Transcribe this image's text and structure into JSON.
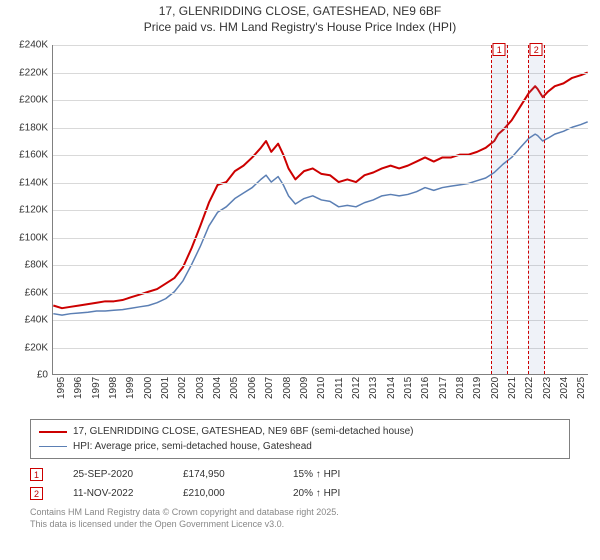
{
  "title": {
    "line1": "17, GLENRIDDING CLOSE, GATESHEAD, NE9 6BF",
    "line2": "Price paid vs. HM Land Registry's House Price Index (HPI)"
  },
  "chart": {
    "type": "line",
    "background_color": "#ffffff",
    "grid_color": "#d9d9d9",
    "axis_color": "#808080",
    "xlim": [
      1995,
      2025.9
    ],
    "ylim": [
      0,
      240000
    ],
    "ytick_step": 20000,
    "ytick_prefix": "£",
    "ytick_suffix": "K",
    "xticks": [
      1995,
      1996,
      1997,
      1998,
      1999,
      2000,
      2001,
      2002,
      2003,
      2004,
      2005,
      2006,
      2007,
      2008,
      2009,
      2010,
      2011,
      2012,
      2013,
      2014,
      2015,
      2016,
      2017,
      2018,
      2019,
      2020,
      2021,
      2022,
      2023,
      2024,
      2025
    ],
    "series": [
      {
        "name": "17, GLENRIDDING CLOSE, GATESHEAD, NE9 6BF (semi-detached house)",
        "color": "#cc0000",
        "line_width": 2,
        "points": [
          [
            1995.0,
            50000
          ],
          [
            1995.5,
            48000
          ],
          [
            1996.0,
            49000
          ],
          [
            1996.5,
            50000
          ],
          [
            1997.0,
            51000
          ],
          [
            1997.5,
            52000
          ],
          [
            1998.0,
            53000
          ],
          [
            1998.5,
            53000
          ],
          [
            1999.0,
            54000
          ],
          [
            1999.5,
            56000
          ],
          [
            2000.0,
            58000
          ],
          [
            2000.5,
            60000
          ],
          [
            2001.0,
            62000
          ],
          [
            2001.5,
            66000
          ],
          [
            2002.0,
            70000
          ],
          [
            2002.5,
            78000
          ],
          [
            2003.0,
            92000
          ],
          [
            2003.5,
            108000
          ],
          [
            2004.0,
            125000
          ],
          [
            2004.5,
            138000
          ],
          [
            2005.0,
            140000
          ],
          [
            2005.5,
            148000
          ],
          [
            2006.0,
            152000
          ],
          [
            2006.5,
            158000
          ],
          [
            2007.0,
            165000
          ],
          [
            2007.3,
            170000
          ],
          [
            2007.6,
            162000
          ],
          [
            2008.0,
            168000
          ],
          [
            2008.3,
            160000
          ],
          [
            2008.6,
            150000
          ],
          [
            2009.0,
            142000
          ],
          [
            2009.5,
            148000
          ],
          [
            2010.0,
            150000
          ],
          [
            2010.5,
            146000
          ],
          [
            2011.0,
            145000
          ],
          [
            2011.5,
            140000
          ],
          [
            2012.0,
            142000
          ],
          [
            2012.5,
            140000
          ],
          [
            2013.0,
            145000
          ],
          [
            2013.5,
            147000
          ],
          [
            2014.0,
            150000
          ],
          [
            2014.5,
            152000
          ],
          [
            2015.0,
            150000
          ],
          [
            2015.5,
            152000
          ],
          [
            2016.0,
            155000
          ],
          [
            2016.5,
            158000
          ],
          [
            2017.0,
            155000
          ],
          [
            2017.5,
            158000
          ],
          [
            2018.0,
            158000
          ],
          [
            2018.5,
            160000
          ],
          [
            2019.0,
            160000
          ],
          [
            2019.5,
            162000
          ],
          [
            2020.0,
            165000
          ],
          [
            2020.5,
            170000
          ],
          [
            2020.73,
            174950
          ],
          [
            2021.0,
            178000
          ],
          [
            2021.5,
            185000
          ],
          [
            2022.0,
            195000
          ],
          [
            2022.5,
            205000
          ],
          [
            2022.86,
            210000
          ],
          [
            2023.0,
            208000
          ],
          [
            2023.3,
            202000
          ],
          [
            2023.6,
            206000
          ],
          [
            2024.0,
            210000
          ],
          [
            2024.5,
            212000
          ],
          [
            2025.0,
            216000
          ],
          [
            2025.5,
            218000
          ],
          [
            2025.9,
            220000
          ]
        ]
      },
      {
        "name": "HPI: Average price, semi-detached house, Gateshead",
        "color": "#5b7fb4",
        "line_width": 1.5,
        "points": [
          [
            1995.0,
            44000
          ],
          [
            1995.5,
            43000
          ],
          [
            1996.0,
            44000
          ],
          [
            1996.5,
            44500
          ],
          [
            1997.0,
            45000
          ],
          [
            1997.5,
            46000
          ],
          [
            1998.0,
            46000
          ],
          [
            1998.5,
            46500
          ],
          [
            1999.0,
            47000
          ],
          [
            1999.5,
            48000
          ],
          [
            2000.0,
            49000
          ],
          [
            2000.5,
            50000
          ],
          [
            2001.0,
            52000
          ],
          [
            2001.5,
            55000
          ],
          [
            2002.0,
            60000
          ],
          [
            2002.5,
            68000
          ],
          [
            2003.0,
            80000
          ],
          [
            2003.5,
            93000
          ],
          [
            2004.0,
            108000
          ],
          [
            2004.5,
            118000
          ],
          [
            2005.0,
            122000
          ],
          [
            2005.5,
            128000
          ],
          [
            2006.0,
            132000
          ],
          [
            2006.5,
            136000
          ],
          [
            2007.0,
            142000
          ],
          [
            2007.3,
            145000
          ],
          [
            2007.6,
            140000
          ],
          [
            2008.0,
            144000
          ],
          [
            2008.3,
            138000
          ],
          [
            2008.6,
            130000
          ],
          [
            2009.0,
            124000
          ],
          [
            2009.5,
            128000
          ],
          [
            2010.0,
            130000
          ],
          [
            2010.5,
            127000
          ],
          [
            2011.0,
            126000
          ],
          [
            2011.5,
            122000
          ],
          [
            2012.0,
            123000
          ],
          [
            2012.5,
            122000
          ],
          [
            2013.0,
            125000
          ],
          [
            2013.5,
            127000
          ],
          [
            2014.0,
            130000
          ],
          [
            2014.5,
            131000
          ],
          [
            2015.0,
            130000
          ],
          [
            2015.5,
            131000
          ],
          [
            2016.0,
            133000
          ],
          [
            2016.5,
            136000
          ],
          [
            2017.0,
            134000
          ],
          [
            2017.5,
            136000
          ],
          [
            2018.0,
            137000
          ],
          [
            2018.5,
            138000
          ],
          [
            2019.0,
            139000
          ],
          [
            2019.5,
            141000
          ],
          [
            2020.0,
            143000
          ],
          [
            2020.5,
            147000
          ],
          [
            2021.0,
            153000
          ],
          [
            2021.5,
            158000
          ],
          [
            2022.0,
            165000
          ],
          [
            2022.5,
            172000
          ],
          [
            2022.86,
            175000
          ],
          [
            2023.0,
            174000
          ],
          [
            2023.3,
            170000
          ],
          [
            2023.6,
            172000
          ],
          [
            2024.0,
            175000
          ],
          [
            2024.5,
            177000
          ],
          [
            2025.0,
            180000
          ],
          [
            2025.5,
            182000
          ],
          [
            2025.9,
            184000
          ]
        ]
      }
    ],
    "event_markers": [
      {
        "id": "1",
        "x": 2020.73,
        "band_width_years": 1.0,
        "border_color": "#cc0000"
      },
      {
        "id": "2",
        "x": 2022.86,
        "band_width_years": 1.0,
        "border_color": "#cc0000"
      }
    ]
  },
  "legend": {
    "border_color": "#808080"
  },
  "events": [
    {
      "id": "1",
      "date": "25-SEP-2020",
      "price": "£174,950",
      "delta": "15% ↑ HPI",
      "border_color": "#cc0000"
    },
    {
      "id": "2",
      "date": "11-NOV-2022",
      "price": "£210,000",
      "delta": "20% ↑ HPI",
      "border_color": "#cc0000"
    }
  ],
  "footer": {
    "line1": "Contains HM Land Registry data © Crown copyright and database right 2025.",
    "line2": "This data is licensed under the Open Government Licence v3.0."
  }
}
